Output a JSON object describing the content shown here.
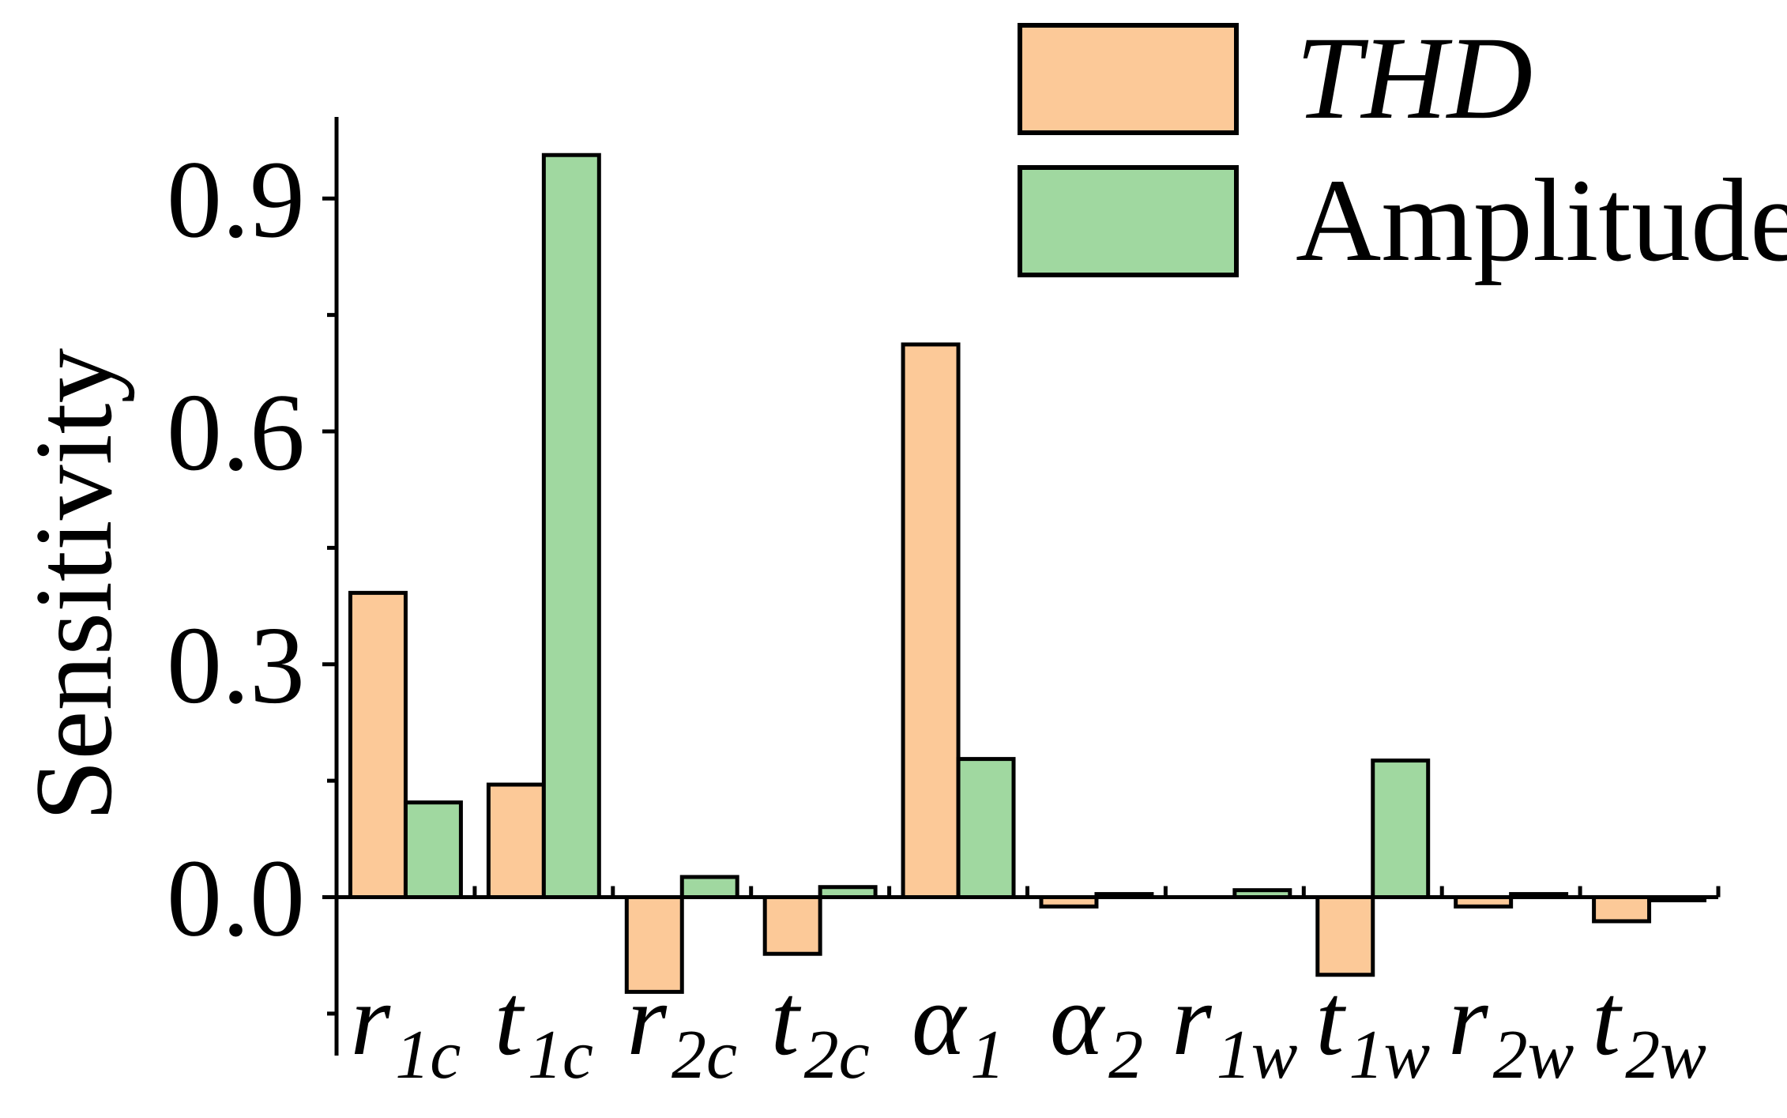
{
  "chart_data": {
    "type": "bar",
    "ylabel": "Sensitivity",
    "categories": [
      {
        "symbol": "r",
        "subscript": "1c"
      },
      {
        "symbol": "t",
        "subscript": "1c"
      },
      {
        "symbol": "r",
        "subscript": "2c"
      },
      {
        "symbol": "t",
        "subscript": "2c"
      },
      {
        "symbol": "α",
        "subscript": "1"
      },
      {
        "symbol": "α",
        "subscript": "2"
      },
      {
        "symbol": "r",
        "subscript": "1w"
      },
      {
        "symbol": "t",
        "subscript": "1w"
      },
      {
        "symbol": "r",
        "subscript": "2w"
      },
      {
        "symbol": "t",
        "subscript": "2w"
      }
    ],
    "series": [
      {
        "name": "THD",
        "color": "#fcc998",
        "values": [
          0.392,
          0.145,
          -0.122,
          -0.073,
          0.712,
          -0.012,
          0,
          -0.1,
          -0.012,
          -0.031
        ]
      },
      {
        "name": "Amplitude",
        "color": "#a0d8a0",
        "values": [
          0.122,
          0.956,
          0.026,
          0.013,
          0.178,
          0.004,
          0.009,
          0.176,
          0.004,
          -0.004
        ]
      }
    ],
    "ylim": [
      -0.2,
      1.0
    ],
    "yticks": [
      {
        "value": 0,
        "label": "0.0"
      },
      0.3,
      0.6,
      0.9
    ],
    "minor_yticks": [
      -0.15,
      0.15,
      0.45,
      0.75
    ],
    "legend": "upper right"
  }
}
